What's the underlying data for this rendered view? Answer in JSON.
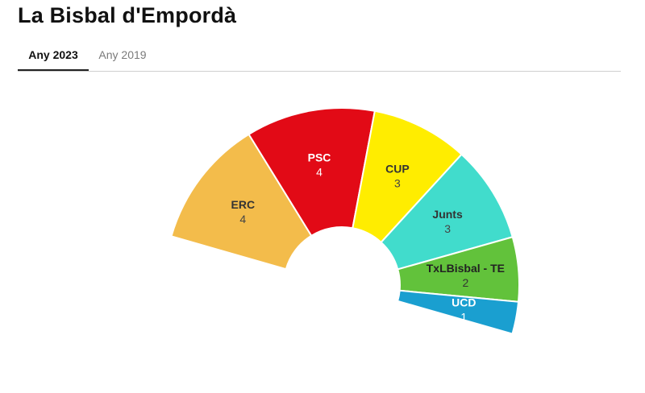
{
  "page": {
    "title": "La Bisbal d'Empordà"
  },
  "tabs": [
    {
      "label": "Any 2023",
      "active": true
    },
    {
      "label": "Any 2019",
      "active": false
    }
  ],
  "chart_data": {
    "type": "parliament",
    "total_seats": 17,
    "series": [
      {
        "name": "ERC",
        "seats": 4,
        "color": "#F3BC4B",
        "label_color": "#333333",
        "value_color": "#444444"
      },
      {
        "name": "PSC",
        "seats": 4,
        "color": "#E20A16",
        "label_color": "#ffffff",
        "value_color": "#ffffff"
      },
      {
        "name": "CUP",
        "seats": 3,
        "color": "#FFED00",
        "label_color": "#333333",
        "value_color": "#444444"
      },
      {
        "name": "Junts",
        "seats": 3,
        "color": "#41DCCC",
        "label_color": "#333333",
        "value_color": "#444444"
      },
      {
        "name": "TxLBisbal - TE",
        "seats": 2,
        "color": "#62C23B",
        "label_color": "#222222",
        "value_color": "#333333"
      },
      {
        "name": "UCD",
        "seats": 1,
        "color": "#1A9FD0",
        "label_color": "#ffffff",
        "value_color": "#ffffff"
      }
    ]
  }
}
